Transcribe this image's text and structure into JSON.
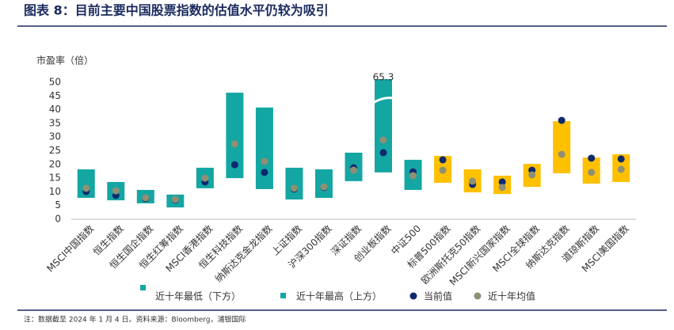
{
  "chart_data": {
    "type": "floating-bar",
    "title": "图表 8：目前主要中国股票指数的估值水平仍较为吸引",
    "y_label": "市盈率（倍）",
    "note": "注：数据截至 2024 年 1 月 4 日。资料来源：Bloomberg，浦银国际",
    "categories": [
      "MSCI中国指数",
      "恒生指数",
      "恒生国企指数",
      "恒生红筹指数",
      "MSCI香港指数",
      "恒生科技指数",
      "纳斯达克金龙指数",
      "上证指数",
      "沪深300指数",
      "深证指数",
      "创业板指数",
      "中证500",
      "标普500指数",
      "欧洲斯托克50指数",
      "MSCI新兴国家指数",
      "MSCI全球指数",
      "纳斯达克指数",
      "道琼斯指数",
      "MSCI美国指数"
    ],
    "bar_colors": [
      "#14a6a3",
      "#14a6a3",
      "#14a6a3",
      "#14a6a3",
      "#14a6a3",
      "#14a6a3",
      "#14a6a3",
      "#14a6a3",
      "#14a6a3",
      "#14a6a3",
      "#14a6a3",
      "#14a6a3",
      "#ffc000",
      "#ffc000",
      "#ffc000",
      "#ffc000",
      "#ffc000",
      "#ffc000",
      "#ffc000"
    ],
    "series": [
      {
        "name": "近十年最低（下方）",
        "color": "#14a6a3",
        "values": [
          7.8,
          6.9,
          5.8,
          4.3,
          11.3,
          15.0,
          11.0,
          7.2,
          7.8,
          13.9,
          17.1,
          10.7,
          13.3,
          9.8,
          9.2,
          11.8,
          16.8,
          13.0,
          13.6
        ]
      },
      {
        "name": "近十年最高（上方）",
        "color": "#14a6a3",
        "values": [
          18.2,
          13.6,
          10.7,
          9.0,
          18.8,
          46.2,
          40.8,
          18.8,
          18.2,
          24.3,
          65.3,
          21.7,
          23.1,
          18.2,
          15.9,
          20.2,
          35.8,
          22.5,
          23.7
        ],
        "value_labels": [
          null,
          null,
          null,
          null,
          null,
          null,
          null,
          null,
          null,
          null,
          "65.3",
          null,
          null,
          null,
          null,
          null,
          null,
          null,
          null
        ]
      },
      {
        "name": "当前值",
        "color": "#0d2a6e",
        "values": [
          10.1,
          8.7,
          7.5,
          7.0,
          13.6,
          19.9,
          17.1,
          11.0,
          11.6,
          18.8,
          24.3,
          17.3,
          21.7,
          12.7,
          13.6,
          17.9,
          36.1,
          22.3,
          22.0
        ]
      },
      {
        "name": "近十年均值",
        "color": "#8f8f74",
        "values": [
          11.3,
          10.4,
          7.8,
          7.2,
          15.0,
          27.5,
          21.1,
          11.3,
          11.8,
          17.9,
          28.9,
          15.9,
          17.9,
          13.9,
          11.6,
          16.2,
          23.7,
          17.1,
          18.2
        ]
      }
    ],
    "ylim": [
      0,
      50
    ],
    "yticks": [
      0,
      5,
      10,
      15,
      20,
      25,
      30,
      35,
      40,
      45,
      50
    ]
  }
}
